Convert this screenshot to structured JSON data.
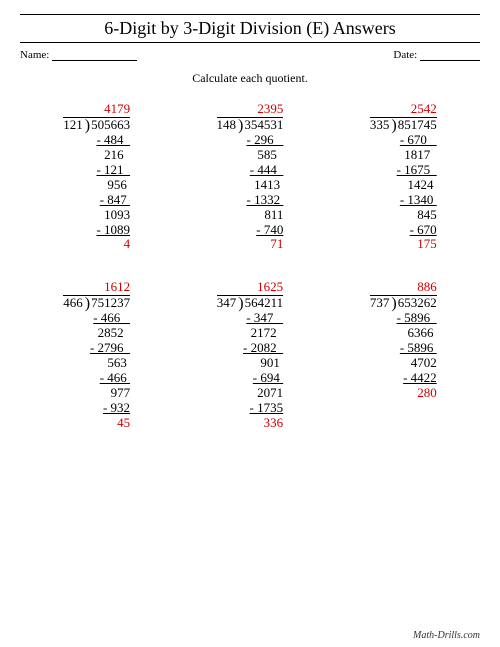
{
  "title": "6-Digit by 3-Digit Division (E) Answers",
  "name_label": "Name:",
  "date_label": "Date:",
  "instruction": "Calculate each quotient.",
  "footer": "Math-Drills.com",
  "problems": [
    {
      "divisor": "121",
      "dividend": "505663",
      "quotient": "4179",
      "remainder": "4",
      "steps": [
        "- 484  ",
        "216  ",
        "- 121  ",
        "956 ",
        "- 847 ",
        "1093",
        "- 1089"
      ]
    },
    {
      "divisor": "148",
      "dividend": "354531",
      "quotient": "2395",
      "remainder": "71",
      "steps": [
        "- 296   ",
        "585  ",
        "- 444  ",
        "1413 ",
        "- 1332 ",
        "811",
        "- 740"
      ]
    },
    {
      "divisor": "335",
      "dividend": "851745",
      "quotient": "2542",
      "remainder": "175",
      "steps": [
        "- 670   ",
        "1817  ",
        "- 1675  ",
        "1424 ",
        "- 1340 ",
        "845",
        "- 670"
      ]
    },
    {
      "divisor": "466",
      "dividend": "751237",
      "quotient": "1612",
      "remainder": "45",
      "steps": [
        "- 466   ",
        "2852  ",
        "- 2796  ",
        "563 ",
        "- 466 ",
        "977",
        "- 932"
      ]
    },
    {
      "divisor": "347",
      "dividend": "564211",
      "quotient": "1625",
      "remainder": "336",
      "steps": [
        "- 347   ",
        "2172  ",
        "- 2082  ",
        "901 ",
        "- 694 ",
        "2071",
        "- 1735"
      ]
    },
    {
      "divisor": "737",
      "dividend": "653262",
      "quotient": "886",
      "remainder": "280",
      "steps": [
        "- 5896  ",
        "6366 ",
        "- 5896 ",
        "4702",
        "- 4422"
      ]
    }
  ]
}
